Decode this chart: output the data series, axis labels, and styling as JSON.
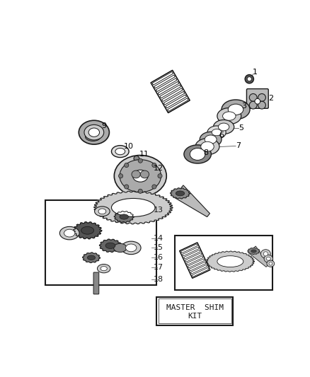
{
  "bg_color": "#ffffff",
  "line_color": "#1a1a1a",
  "gray_color": "#666666",
  "fig_w": 4.38,
  "fig_h": 5.33,
  "dpi": 100,
  "master_shim_text_1": "MASTER  SHIM",
  "master_shim_text_2": "KIT"
}
